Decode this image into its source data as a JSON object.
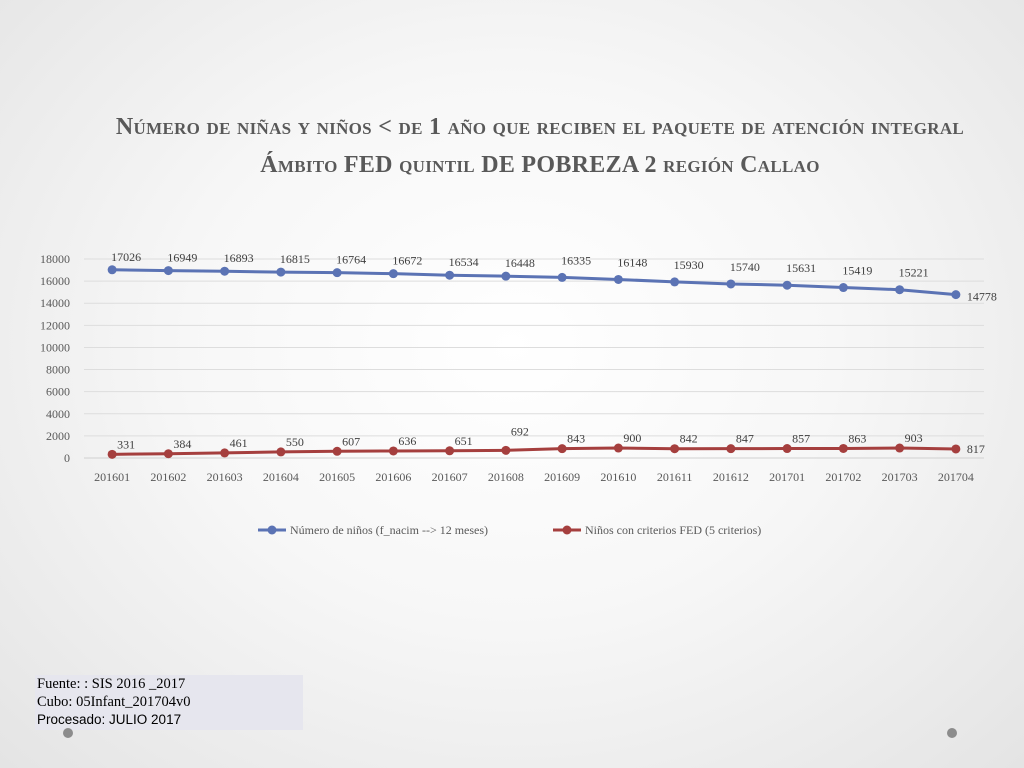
{
  "slide": {
    "title": "Número de niñas y niños < de 1 año que reciben el paquete de atención integral Ámbito FED quintil DE POBREZA 2 región Callao",
    "source_lines": [
      "Fuente: : SIS 2016 _2017",
      "Cubo: 05Infant_201704v0",
      "Procesado: JULIO 2017"
    ]
  },
  "chart_data": {
    "type": "line",
    "categories": [
      "201601",
      "201602",
      "201603",
      "201604",
      "201605",
      "201606",
      "201607",
      "201608",
      "201609",
      "201610",
      "201611",
      "201612",
      "201701",
      "201702",
      "201703",
      "201704"
    ],
    "ylim": [
      0,
      18000
    ],
    "yticks": [
      0,
      2000,
      4000,
      6000,
      8000,
      10000,
      12000,
      14000,
      16000,
      18000
    ],
    "grid": true,
    "legend_position": "bottom",
    "series": [
      {
        "name": "Número de niños (f_nacim --> 12 meses)",
        "color": "#5b73b4",
        "values": [
          17026,
          16949,
          16893,
          16815,
          16764,
          16672,
          16534,
          16448,
          16335,
          16148,
          15930,
          15740,
          15631,
          15419,
          15221,
          14778
        ]
      },
      {
        "name": "Niños con criterios FED (5 criterios)",
        "color": "#a53f3e",
        "values": [
          331,
          384,
          461,
          550,
          607,
          636,
          651,
          692,
          843,
          900,
          842,
          847,
          857,
          863,
          903,
          817
        ]
      }
    ]
  }
}
